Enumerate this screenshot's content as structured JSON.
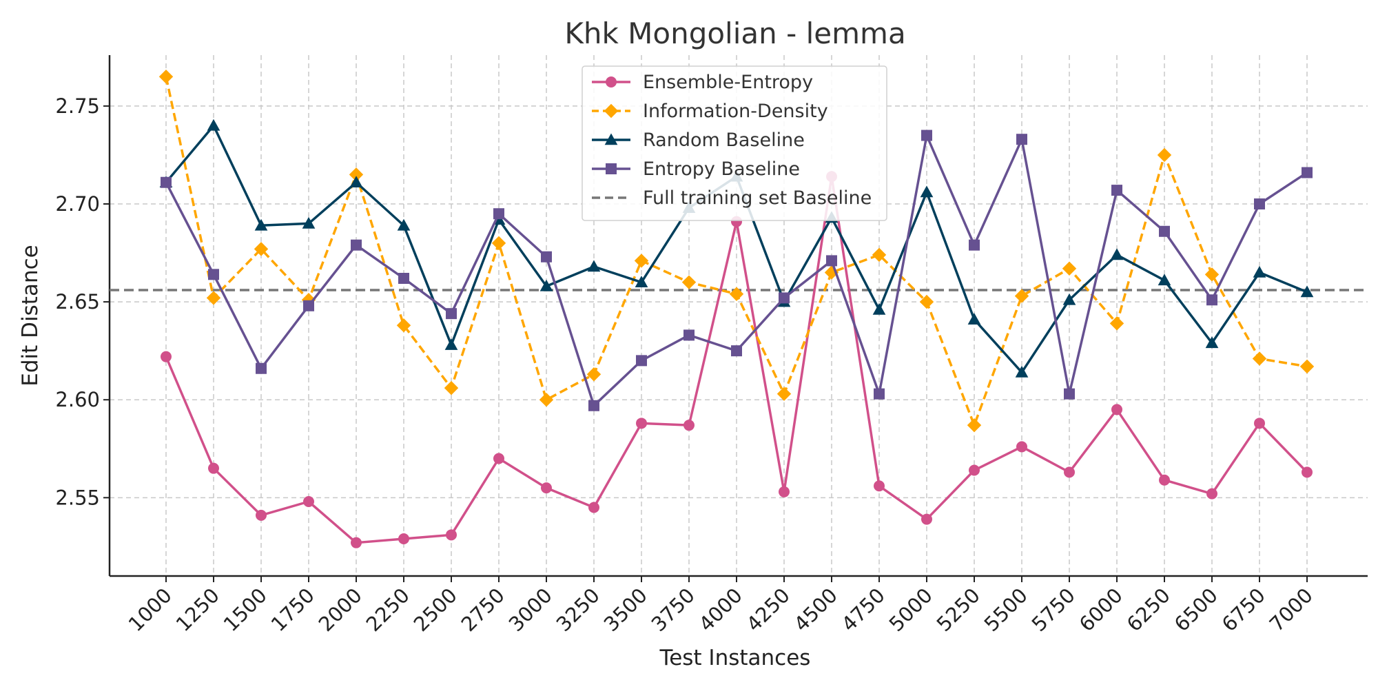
{
  "chart_data": {
    "type": "line",
    "title": "Khk Mongolian - lemma",
    "xlabel": "Test Instances",
    "ylabel": "Edit Distance",
    "ylim": [
      2.51,
      2.776
    ],
    "yticks": [
      2.55,
      2.6,
      2.65,
      2.7,
      2.75
    ],
    "ytick_labels": [
      "2.55",
      "2.60",
      "2.65",
      "2.70",
      "2.75"
    ],
    "grid": true,
    "legend_position": "top-center",
    "categories": [
      "1000",
      "1250",
      "1500",
      "1750",
      "2000",
      "2250",
      "2500",
      "2750",
      "3000",
      "3250",
      "3500",
      "3750",
      "4000",
      "4250",
      "4500",
      "4750",
      "5000",
      "5250",
      "5500",
      "5750",
      "6000",
      "6250",
      "6500",
      "6750",
      "7000"
    ],
    "series": [
      {
        "name": "Ensemble-Entropy",
        "color": "#d1508a",
        "marker": "circle",
        "dash": "solid",
        "values": [
          2.622,
          2.565,
          2.541,
          2.548,
          2.527,
          2.529,
          2.531,
          2.57,
          2.555,
          2.545,
          2.588,
          2.587,
          2.691,
          2.553,
          2.714,
          2.556,
          2.539,
          2.564,
          2.576,
          2.563,
          2.595,
          2.559,
          2.552,
          2.588,
          2.563
        ]
      },
      {
        "name": "Information-Density",
        "color": "#ffa600",
        "marker": "diamond",
        "dash": "dashed",
        "values": [
          2.765,
          2.652,
          2.677,
          2.651,
          2.715,
          2.638,
          2.606,
          2.68,
          2.6,
          2.613,
          2.671,
          2.66,
          2.654,
          2.603,
          2.665,
          2.674,
          2.65,
          2.587,
          2.653,
          2.667,
          2.639,
          2.725,
          2.664,
          2.621,
          2.617
        ]
      },
      {
        "name": "Random Baseline",
        "color": "#003f5c",
        "marker": "triangle",
        "dash": "solid",
        "values": [
          2.711,
          2.74,
          2.689,
          2.69,
          2.711,
          2.689,
          2.628,
          2.692,
          2.658,
          2.668,
          2.66,
          2.698,
          2.714,
          2.65,
          2.693,
          2.646,
          2.706,
          2.641,
          2.614,
          2.651,
          2.674,
          2.661,
          2.629,
          2.665,
          2.655
        ]
      },
      {
        "name": "Entropy Baseline",
        "color": "#665191",
        "marker": "square",
        "dash": "solid",
        "values": [
          2.711,
          2.664,
          2.616,
          2.648,
          2.679,
          2.662,
          2.644,
          2.695,
          2.673,
          2.597,
          2.62,
          2.633,
          2.625,
          2.652,
          2.671,
          2.603,
          2.735,
          2.679,
          2.733,
          2.603,
          2.707,
          2.686,
          2.651,
          2.7,
          2.716
        ]
      }
    ],
    "reference_line": {
      "name": "Full training set Baseline",
      "value": 2.656,
      "color": "#777777",
      "dash": "dashed"
    }
  }
}
